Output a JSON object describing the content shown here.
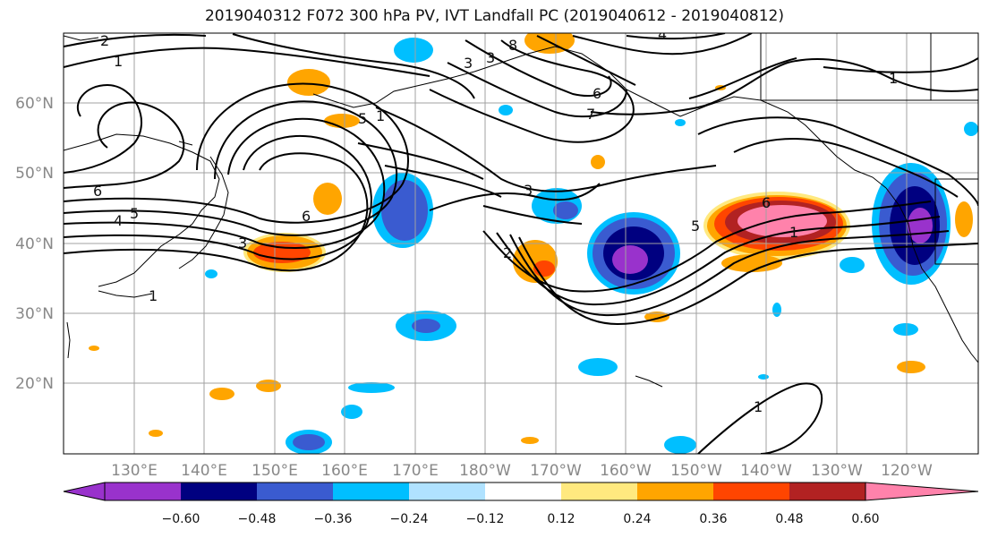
{
  "title": "2019040312 F072 300 hPa PV, IVT Landfall PC (2019040612 - 2019040812)",
  "map": {
    "lat_labels": [
      "60°N",
      "50°N",
      "40°N",
      "30°N",
      "20°N"
    ],
    "lon_labels": [
      "130°E",
      "140°E",
      "150°E",
      "160°E",
      "170°E",
      "180°W",
      "170°W",
      "160°W",
      "150°W",
      "140°W",
      "130°W",
      "120°W"
    ],
    "contour_labels": [
      "2",
      "1",
      "6",
      "4",
      "5",
      "3",
      "1",
      "5",
      "1",
      "6",
      "3",
      "8",
      "3",
      "4",
      "6",
      "7",
      "1",
      "3",
      "2",
      "6",
      "5",
      "6",
      "1",
      "1"
    ]
  },
  "colorbar": {
    "ticks": [
      "−0.60",
      "−0.48",
      "−0.36",
      "−0.24",
      "−0.12",
      "0.12",
      "0.24",
      "0.36",
      "0.48",
      "0.60"
    ],
    "colors": [
      "#9932cc",
      "#000080",
      "#3a5bd0",
      "#00bfff",
      "#b0e2ff",
      "#ffffff",
      "#ffe97f",
      "#ffa500",
      "#ff4500",
      "#b22222",
      "#ff82ab"
    ]
  }
}
